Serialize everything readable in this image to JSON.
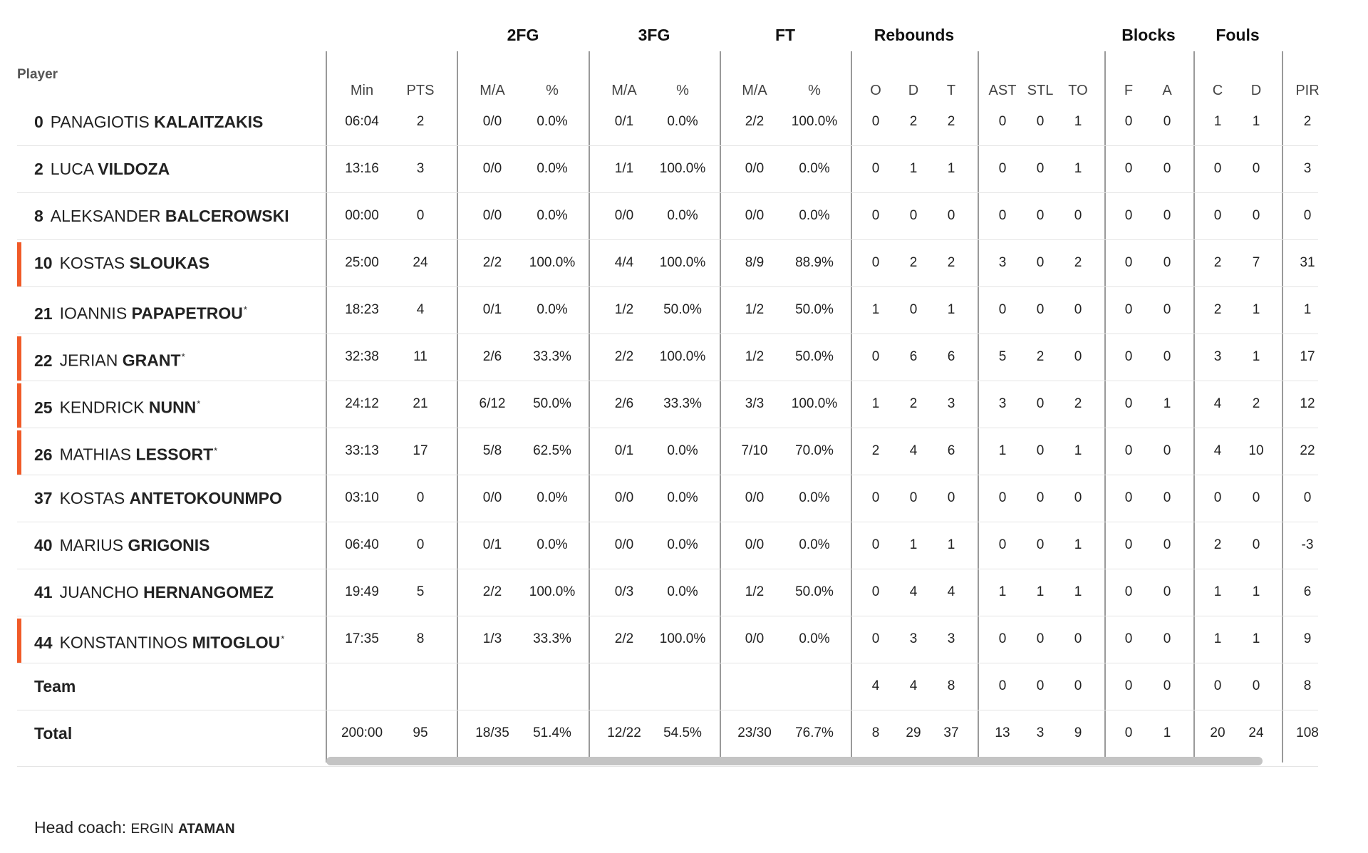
{
  "table": {
    "player_header": "Player",
    "groups": [
      "2FG",
      "3FG",
      "FT",
      "Rebounds",
      "Blocks",
      "Fouls"
    ],
    "subheaders": [
      "Min",
      "PTS",
      "M/A",
      "%",
      "M/A",
      "%",
      "M/A",
      "%",
      "O",
      "D",
      "T",
      "AST",
      "STL",
      "TO",
      "F",
      "A",
      "C",
      "D",
      "PIR"
    ],
    "players": [
      {
        "num": "0",
        "first": "PANAGIOTIS",
        "last": "KALAITZAKIS",
        "starter": false,
        "star": false,
        "stats": [
          "06:04",
          "2",
          "0/0",
          "0.0%",
          "0/1",
          "0.0%",
          "2/2",
          "100.0%",
          "0",
          "2",
          "2",
          "0",
          "0",
          "1",
          "0",
          "0",
          "1",
          "1",
          "2"
        ]
      },
      {
        "num": "2",
        "first": "LUCA",
        "last": "VILDOZA",
        "starter": false,
        "star": false,
        "stats": [
          "13:16",
          "3",
          "0/0",
          "0.0%",
          "1/1",
          "100.0%",
          "0/0",
          "0.0%",
          "0",
          "1",
          "1",
          "0",
          "0",
          "1",
          "0",
          "0",
          "0",
          "0",
          "3"
        ]
      },
      {
        "num": "8",
        "first": "ALEKSANDER",
        "last": "BALCEROWSKI",
        "starter": false,
        "star": false,
        "stats": [
          "00:00",
          "0",
          "0/0",
          "0.0%",
          "0/0",
          "0.0%",
          "0/0",
          "0.0%",
          "0",
          "0",
          "0",
          "0",
          "0",
          "0",
          "0",
          "0",
          "0",
          "0",
          "0"
        ]
      },
      {
        "num": "10",
        "first": "KOSTAS",
        "last": "SLOUKAS",
        "starter": true,
        "star": false,
        "stats": [
          "25:00",
          "24",
          "2/2",
          "100.0%",
          "4/4",
          "100.0%",
          "8/9",
          "88.9%",
          "0",
          "2",
          "2",
          "3",
          "0",
          "2",
          "0",
          "0",
          "2",
          "7",
          "31"
        ]
      },
      {
        "num": "21",
        "first": "IOANNIS",
        "last": "PAPAPETROU",
        "starter": false,
        "star": true,
        "stats": [
          "18:23",
          "4",
          "0/1",
          "0.0%",
          "1/2",
          "50.0%",
          "1/2",
          "50.0%",
          "1",
          "0",
          "1",
          "0",
          "0",
          "0",
          "0",
          "0",
          "2",
          "1",
          "1"
        ]
      },
      {
        "num": "22",
        "first": "JERIAN",
        "last": "GRANT",
        "starter": true,
        "star": true,
        "stats": [
          "32:38",
          "11",
          "2/6",
          "33.3%",
          "2/2",
          "100.0%",
          "1/2",
          "50.0%",
          "0",
          "6",
          "6",
          "5",
          "2",
          "0",
          "0",
          "0",
          "3",
          "1",
          "17"
        ]
      },
      {
        "num": "25",
        "first": "KENDRICK",
        "last": "NUNN",
        "starter": true,
        "star": true,
        "stats": [
          "24:12",
          "21",
          "6/12",
          "50.0%",
          "2/6",
          "33.3%",
          "3/3",
          "100.0%",
          "1",
          "2",
          "3",
          "3",
          "0",
          "2",
          "0",
          "1",
          "4",
          "2",
          "12"
        ]
      },
      {
        "num": "26",
        "first": "MATHIAS",
        "last": "LESSORT",
        "starter": true,
        "star": true,
        "stats": [
          "33:13",
          "17",
          "5/8",
          "62.5%",
          "0/1",
          "0.0%",
          "7/10",
          "70.0%",
          "2",
          "4",
          "6",
          "1",
          "0",
          "1",
          "0",
          "0",
          "4",
          "10",
          "22"
        ]
      },
      {
        "num": "37",
        "first": "KOSTAS",
        "last": "ANTETOKOUNMPO",
        "starter": false,
        "star": false,
        "stats": [
          "03:10",
          "0",
          "0/0",
          "0.0%",
          "0/0",
          "0.0%",
          "0/0",
          "0.0%",
          "0",
          "0",
          "0",
          "0",
          "0",
          "0",
          "0",
          "0",
          "0",
          "0",
          "0"
        ]
      },
      {
        "num": "40",
        "first": "MARIUS",
        "last": "GRIGONIS",
        "starter": false,
        "star": false,
        "stats": [
          "06:40",
          "0",
          "0/1",
          "0.0%",
          "0/0",
          "0.0%",
          "0/0",
          "0.0%",
          "0",
          "1",
          "1",
          "0",
          "0",
          "1",
          "0",
          "0",
          "2",
          "0",
          "-3"
        ]
      },
      {
        "num": "41",
        "first": "JUANCHO",
        "last": "HERNANGOMEZ",
        "starter": false,
        "star": false,
        "stats": [
          "19:49",
          "5",
          "2/2",
          "100.0%",
          "0/3",
          "0.0%",
          "1/2",
          "50.0%",
          "0",
          "4",
          "4",
          "1",
          "1",
          "1",
          "0",
          "0",
          "1",
          "1",
          "6"
        ]
      },
      {
        "num": "44",
        "first": "KONSTANTINOS",
        "last": "MITOGLOU",
        "starter": true,
        "star": true,
        "stats": [
          "17:35",
          "8",
          "1/3",
          "33.3%",
          "2/2",
          "100.0%",
          "0/0",
          "0.0%",
          "0",
          "3",
          "3",
          "0",
          "0",
          "0",
          "0",
          "0",
          "1",
          "1",
          "9"
        ]
      }
    ],
    "team": {
      "label": "Team",
      "stats": [
        "",
        "",
        "",
        "",
        "",
        "",
        "",
        "",
        "4",
        "4",
        "8",
        "0",
        "0",
        "0",
        "0",
        "0",
        "0",
        "0",
        "8"
      ]
    },
    "total": {
      "label": "Total",
      "stats": [
        "200:00",
        "95",
        "18/35",
        "51.4%",
        "12/22",
        "54.5%",
        "23/30",
        "76.7%",
        "8",
        "29",
        "37",
        "13",
        "3",
        "9",
        "0",
        "1",
        "20",
        "24",
        "108"
      ]
    }
  },
  "coach": {
    "prefix": "Head coach:",
    "first": "ERGIN",
    "last": "ATAMAN"
  },
  "colors": {
    "starter_accent": "#f05a28",
    "divider": "#9a9a9a",
    "scrollbar": "#c4c4c4"
  }
}
